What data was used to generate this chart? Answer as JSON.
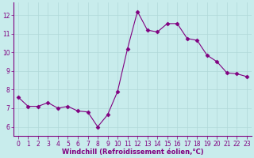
{
  "x": [
    0,
    1,
    2,
    3,
    4,
    5,
    6,
    7,
    8,
    9,
    10,
    11,
    12,
    13,
    14,
    15,
    16,
    17,
    18,
    19,
    20,
    21,
    22,
    23
  ],
  "y": [
    7.6,
    7.1,
    7.1,
    7.3,
    7.0,
    7.1,
    6.85,
    6.8,
    6.0,
    6.65,
    7.9,
    10.2,
    12.2,
    11.2,
    11.1,
    11.55,
    11.55,
    10.75,
    10.65,
    9.85,
    9.5,
    8.9,
    8.85,
    8.7
  ],
  "line_color": "#800080",
  "marker": "D",
  "marker_size": 2.5,
  "bg_color": "#c8ecec",
  "grid_color": "#b0d8d8",
  "xlabel": "Windchill (Refroidissement éolien,°C)",
  "xlabel_color": "#800080",
  "tick_color": "#800080",
  "spine_color": "#800080",
  "xlim": [
    -0.5,
    23.5
  ],
  "ylim": [
    5.5,
    12.7
  ],
  "yticks": [
    6,
    7,
    8,
    9,
    10,
    11,
    12
  ],
  "xticks": [
    0,
    1,
    2,
    3,
    4,
    5,
    6,
    7,
    8,
    9,
    10,
    11,
    12,
    13,
    14,
    15,
    16,
    17,
    18,
    19,
    20,
    21,
    22,
    23
  ],
  "tick_fontsize": 5.5,
  "xlabel_fontsize": 6.0,
  "ylabel_fontsize": 6.0
}
